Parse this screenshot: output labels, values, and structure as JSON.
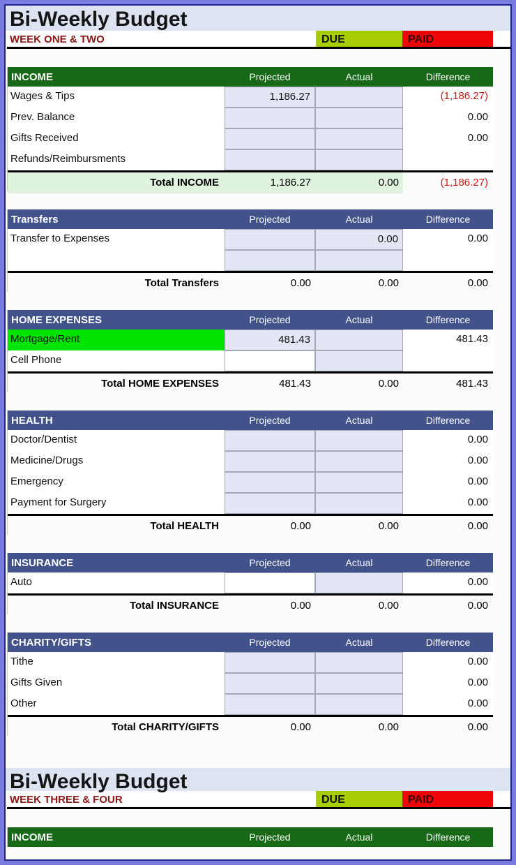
{
  "colors": {
    "frame_outer": "#7B7BDF",
    "frame_line": "#23238F",
    "title_band": "#DCE3F1",
    "week_text": "#8B1414",
    "due_bg": "#A7CE05",
    "paid_bg": "#EE0505",
    "income_header_bg": "#176817",
    "section_header_bg": "#42528B",
    "header_text": "#FFFFFF",
    "cell_fill": "#E3E7F5",
    "cell_border": "#A3A9B5",
    "negative_text": "#CC1818",
    "total_income_bg": "#DFF3DF",
    "highlight_green": "#00E400"
  },
  "week_one": {
    "title": "Bi-Weekly Budget",
    "week_label": "WEEK ONE & TWO",
    "due_label": "DUE",
    "paid_label": "PAID"
  },
  "week_two": {
    "title": "Bi-Weekly Budget",
    "week_label": "WEEK THREE & FOUR",
    "due_label": "DUE",
    "paid_label": "PAID"
  },
  "columns": [
    "Projected",
    "Actual",
    "Difference"
  ],
  "sections_week_one": [
    {
      "name": "INCOME",
      "variant": "green",
      "rows": [
        {
          "label": "Wages & Tips",
          "projected": "1,186.27",
          "actual": "",
          "difference": "(1,186.27)",
          "negative_difference": true
        },
        {
          "label": "Prev. Balance",
          "projected": "",
          "actual": "",
          "difference": "0.00"
        },
        {
          "label": "Gifts Received",
          "projected": "",
          "actual": "",
          "difference": "0.00"
        },
        {
          "label": "Refunds/Reimbursments",
          "projected": "",
          "actual": "",
          "difference": ""
        }
      ],
      "total": {
        "label": "Total INCOME",
        "projected": "1,186.27",
        "actual": "0.00",
        "difference": "(1,186.27)",
        "negative_difference": true,
        "highlighted": true
      }
    },
    {
      "name": "Transfers",
      "variant": "blue",
      "rows": [
        {
          "label": "Transfer to Expenses",
          "projected": "",
          "actual": "0.00",
          "difference": "0.00"
        },
        {
          "label": "",
          "projected": "",
          "actual": "",
          "difference": ""
        }
      ],
      "total": {
        "label": "Total Transfers",
        "projected": "0.00",
        "actual": "0.00",
        "difference": "0.00"
      }
    },
    {
      "name": "HOME EXPENSES",
      "variant": "blue",
      "rows": [
        {
          "label": "Mortgage/Rent",
          "label_highlight": true,
          "projected": "481.43",
          "actual": "",
          "difference": "481.43"
        },
        {
          "label": "Cell Phone",
          "projected": "",
          "projected_filled": false,
          "actual": "",
          "difference": ""
        }
      ],
      "total": {
        "label": "Total HOME EXPENSES",
        "projected": "481.43",
        "actual": "0.00",
        "difference": "481.43"
      }
    },
    {
      "name": "HEALTH",
      "variant": "blue",
      "rows": [
        {
          "label": "Doctor/Dentist",
          "projected": "",
          "actual": "",
          "difference": "0.00"
        },
        {
          "label": "Medicine/Drugs",
          "projected": "",
          "actual": "",
          "difference": "0.00"
        },
        {
          "label": "Emergency",
          "projected": "",
          "actual": "",
          "difference": "0.00"
        },
        {
          "label": "Payment for Surgery",
          "projected": "",
          "actual": "",
          "difference": "0.00"
        }
      ],
      "total": {
        "label": "Total HEALTH",
        "projected": "0.00",
        "actual": "0.00",
        "difference": "0.00"
      }
    },
    {
      "name": "INSURANCE",
      "variant": "blue",
      "rows": [
        {
          "label": "Auto",
          "projected": "",
          "projected_filled": false,
          "actual": "",
          "difference": "0.00"
        }
      ],
      "total": {
        "label": "Total INSURANCE",
        "projected": "0.00",
        "actual": "0.00",
        "difference": "0.00"
      }
    },
    {
      "name": "CHARITY/GIFTS",
      "variant": "blue",
      "rows": [
        {
          "label": "Tithe",
          "projected": "",
          "actual": "",
          "difference": "0.00"
        },
        {
          "label": "Gifts Given",
          "projected": "",
          "actual": "",
          "difference": "0.00"
        },
        {
          "label": "Other",
          "projected": "",
          "actual": "",
          "difference": "0.00"
        }
      ],
      "total": {
        "label": "Total CHARITY/GIFTS",
        "projected": "0.00",
        "actual": "0.00",
        "difference": "0.00"
      }
    }
  ],
  "sections_week_two": [
    {
      "name": "INCOME",
      "variant": "green",
      "rows": [],
      "total": null
    }
  ]
}
